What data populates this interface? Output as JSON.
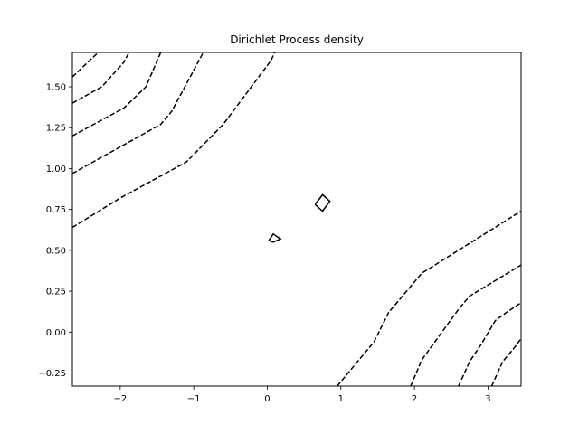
{
  "chart_data": {
    "type": "contour",
    "title": "Dirichlet Process density",
    "xlabel": "",
    "ylabel": "",
    "xlim": [
      -2.65,
      3.45
    ],
    "ylim": [
      -0.33,
      1.71
    ],
    "x_ticks": [
      -2,
      -1,
      0,
      1,
      2,
      3
    ],
    "x_tick_labels": [
      "−2",
      "−1",
      "0",
      "1",
      "2",
      "3"
    ],
    "y_ticks": [
      -0.25,
      0.0,
      0.25,
      0.5,
      0.75,
      1.0,
      1.25,
      1.5
    ],
    "y_tick_labels": [
      "−0.25",
      "0.00",
      "0.25",
      "0.50",
      "0.75",
      "1.00",
      "1.25",
      "1.50"
    ],
    "grid": false,
    "contours": [
      {
        "style": "dashed",
        "points": [
          [
            -2.65,
            1.56
          ],
          [
            -2.3,
            1.71
          ]
        ]
      },
      {
        "style": "dashed",
        "points": [
          [
            -2.65,
            1.4
          ],
          [
            -2.25,
            1.5
          ],
          [
            -1.95,
            1.65
          ],
          [
            -1.88,
            1.71
          ]
        ]
      },
      {
        "style": "dashed",
        "points": [
          [
            -2.65,
            1.2
          ],
          [
            -1.95,
            1.37
          ],
          [
            -1.65,
            1.5
          ],
          [
            -1.45,
            1.71
          ]
        ]
      },
      {
        "style": "dashed",
        "points": [
          [
            -2.65,
            0.97
          ],
          [
            -1.45,
            1.27
          ],
          [
            -1.3,
            1.35
          ],
          [
            -0.87,
            1.71
          ]
        ]
      },
      {
        "style": "dashed",
        "points": [
          [
            -2.65,
            0.64
          ],
          [
            -2.0,
            0.82
          ],
          [
            -1.1,
            1.04
          ],
          [
            -0.6,
            1.27
          ],
          [
            0.05,
            1.66
          ],
          [
            0.1,
            1.71
          ]
        ]
      },
      {
        "style": "dashed",
        "points": [
          [
            0.95,
            -0.33
          ],
          [
            1.45,
            -0.06
          ],
          [
            1.65,
            0.12
          ],
          [
            2.1,
            0.36
          ],
          [
            3.45,
            0.74
          ]
        ]
      },
      {
        "style": "dashed",
        "points": [
          [
            1.95,
            -0.33
          ],
          [
            2.1,
            -0.17
          ],
          [
            2.6,
            0.14
          ],
          [
            2.75,
            0.22
          ],
          [
            3.45,
            0.41
          ]
        ]
      },
      {
        "style": "dashed",
        "points": [
          [
            2.6,
            -0.33
          ],
          [
            2.75,
            -0.18
          ],
          [
            2.9,
            -0.08
          ],
          [
            3.1,
            0.07
          ],
          [
            3.25,
            0.12
          ],
          [
            3.45,
            0.18
          ]
        ]
      },
      {
        "style": "dashed",
        "points": [
          [
            3.05,
            -0.33
          ],
          [
            3.2,
            -0.18
          ],
          [
            3.35,
            -0.1
          ],
          [
            3.45,
            -0.04
          ]
        ]
      },
      {
        "style": "solid",
        "points": [
          [
            0.65,
            0.78
          ],
          [
            0.75,
            0.84
          ],
          [
            0.85,
            0.8
          ],
          [
            0.75,
            0.74
          ],
          [
            0.65,
            0.78
          ]
        ]
      },
      {
        "style": "solid",
        "points": [
          [
            0.02,
            0.56
          ],
          [
            0.08,
            0.6
          ],
          [
            0.18,
            0.57
          ],
          [
            0.08,
            0.55
          ],
          [
            0.02,
            0.56
          ]
        ]
      }
    ]
  }
}
